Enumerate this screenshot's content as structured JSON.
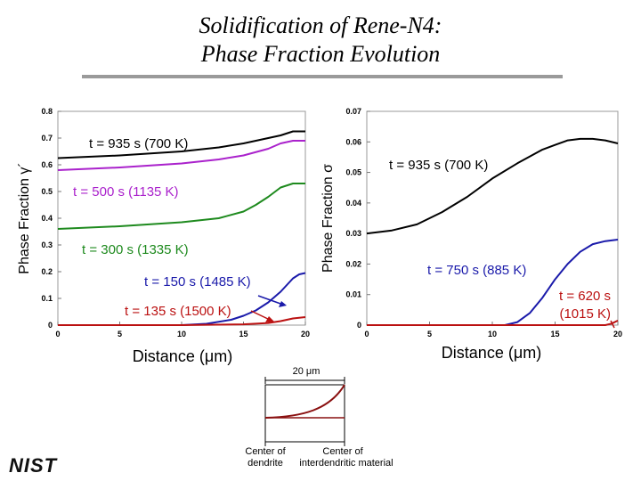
{
  "title": {
    "line1": "Solidification of Rene-N4:",
    "line2": "Phase Fraction Evolution"
  },
  "logo": {
    "text": "NIST"
  },
  "colors": {
    "black": "#000000",
    "purple": "#aa22cc",
    "green": "#1e8a1e",
    "blue": "#1a1aaa",
    "red": "#bb1111",
    "sketch": "#8a1010"
  },
  "chart_data": [
    {
      "type": "line",
      "ylabel": "Phase Fraction γ´",
      "xlabel": "Distance (μm)",
      "xlim": [
        0,
        20
      ],
      "ylim": [
        0,
        0.8
      ],
      "xticks": [
        "0",
        "5",
        "10",
        "15",
        "20"
      ],
      "yticks": [
        "0",
        "0.1",
        "0.2",
        "0.3",
        "0.4",
        "0.5",
        "0.6",
        "0.7",
        "0.8"
      ],
      "series": [
        {
          "name": "t = 935 s (700 K)",
          "color": "#000000",
          "x": [
            0,
            5,
            10,
            13,
            15,
            17,
            18,
            19,
            20
          ],
          "y": [
            0.625,
            0.635,
            0.65,
            0.665,
            0.68,
            0.7,
            0.71,
            0.725,
            0.725
          ]
        },
        {
          "name": "t = 500 s (1135 K)",
          "color": "#aa22cc",
          "x": [
            0,
            5,
            10,
            13,
            15,
            17,
            18,
            19,
            20
          ],
          "y": [
            0.58,
            0.59,
            0.605,
            0.62,
            0.635,
            0.66,
            0.68,
            0.69,
            0.69
          ]
        },
        {
          "name": "t = 300 s (1335 K)",
          "color": "#1e8a1e",
          "x": [
            0,
            5,
            10,
            13,
            15,
            16,
            17,
            18,
            19,
            20
          ],
          "y": [
            0.36,
            0.37,
            0.385,
            0.4,
            0.425,
            0.45,
            0.48,
            0.515,
            0.53,
            0.53
          ]
        },
        {
          "name": "t = 150 s (1485 K)",
          "color": "#1a1aaa",
          "x": [
            0,
            5,
            10,
            12,
            14,
            15,
            16,
            17,
            18,
            19,
            19.5,
            20
          ],
          "y": [
            0,
            0,
            0,
            0.005,
            0.02,
            0.035,
            0.055,
            0.085,
            0.125,
            0.175,
            0.19,
            0.195
          ]
        },
        {
          "name": "t = 135 s (1500 K)",
          "color": "#bb1111",
          "x": [
            0,
            10,
            15,
            17,
            18,
            19,
            20
          ],
          "y": [
            0,
            0,
            0.003,
            0.008,
            0.015,
            0.025,
            0.03
          ]
        }
      ]
    },
    {
      "type": "line",
      "ylabel": "Phase Fraction σ",
      "xlabel": "Distance (μm)",
      "xlim": [
        0,
        20
      ],
      "ylim": [
        0,
        0.07
      ],
      "xticks": [
        "0",
        "5",
        "10",
        "15",
        "20"
      ],
      "yticks": [
        "0",
        "0.01",
        "0.02",
        "0.03",
        "0.04",
        "0.05",
        "0.06",
        "0.07"
      ],
      "series": [
        {
          "name": "t = 935 s (700 K)",
          "color": "#000000",
          "x": [
            0,
            2,
            4,
            6,
            8,
            10,
            12,
            14,
            15,
            16,
            17,
            18,
            19,
            20
          ],
          "y": [
            0.03,
            0.031,
            0.033,
            0.037,
            0.042,
            0.048,
            0.053,
            0.0575,
            0.059,
            0.0605,
            0.061,
            0.061,
            0.0605,
            0.0595
          ]
        },
        {
          "name": "t = 750 s (885 K)",
          "color": "#1a1aaa",
          "x": [
            0,
            3,
            5,
            7,
            9,
            11,
            12,
            13,
            14,
            15,
            16,
            17,
            18,
            19,
            20
          ],
          "y": [
            0,
            0,
            0,
            0,
            0,
            0,
            0.001,
            0.004,
            0.009,
            0.015,
            0.02,
            0.024,
            0.0265,
            0.0275,
            0.028
          ]
        },
        {
          "name": "t = 620 s (1015 K)",
          "color": "#bb1111",
          "x": [
            0,
            17,
            18,
            19,
            19.5,
            20
          ],
          "y": [
            0,
            0,
            0,
            0,
            0.0005,
            0.0015
          ]
        }
      ]
    }
  ],
  "annotations": {
    "left": {
      "t935": "t = 935 s (700 K)",
      "t500": "t = 500 s (1135 K)",
      "t300": "t = 300 s (1335 K)",
      "t150": "t = 150 s (1485 K)",
      "t135": "t = 135 s (1500 K)"
    },
    "right": {
      "t935": "t = 935 s (700 K)",
      "t750": "t = 750 s (885 K)",
      "t620_line1": "t = 620 s",
      "t620_line2": "(1015 K)"
    }
  },
  "sketch": {
    "scale": "20 μm",
    "left_line1": "Center of",
    "left_line2": "dendrite",
    "right_line1": "Center of",
    "right_line2": "interdendritic material"
  }
}
